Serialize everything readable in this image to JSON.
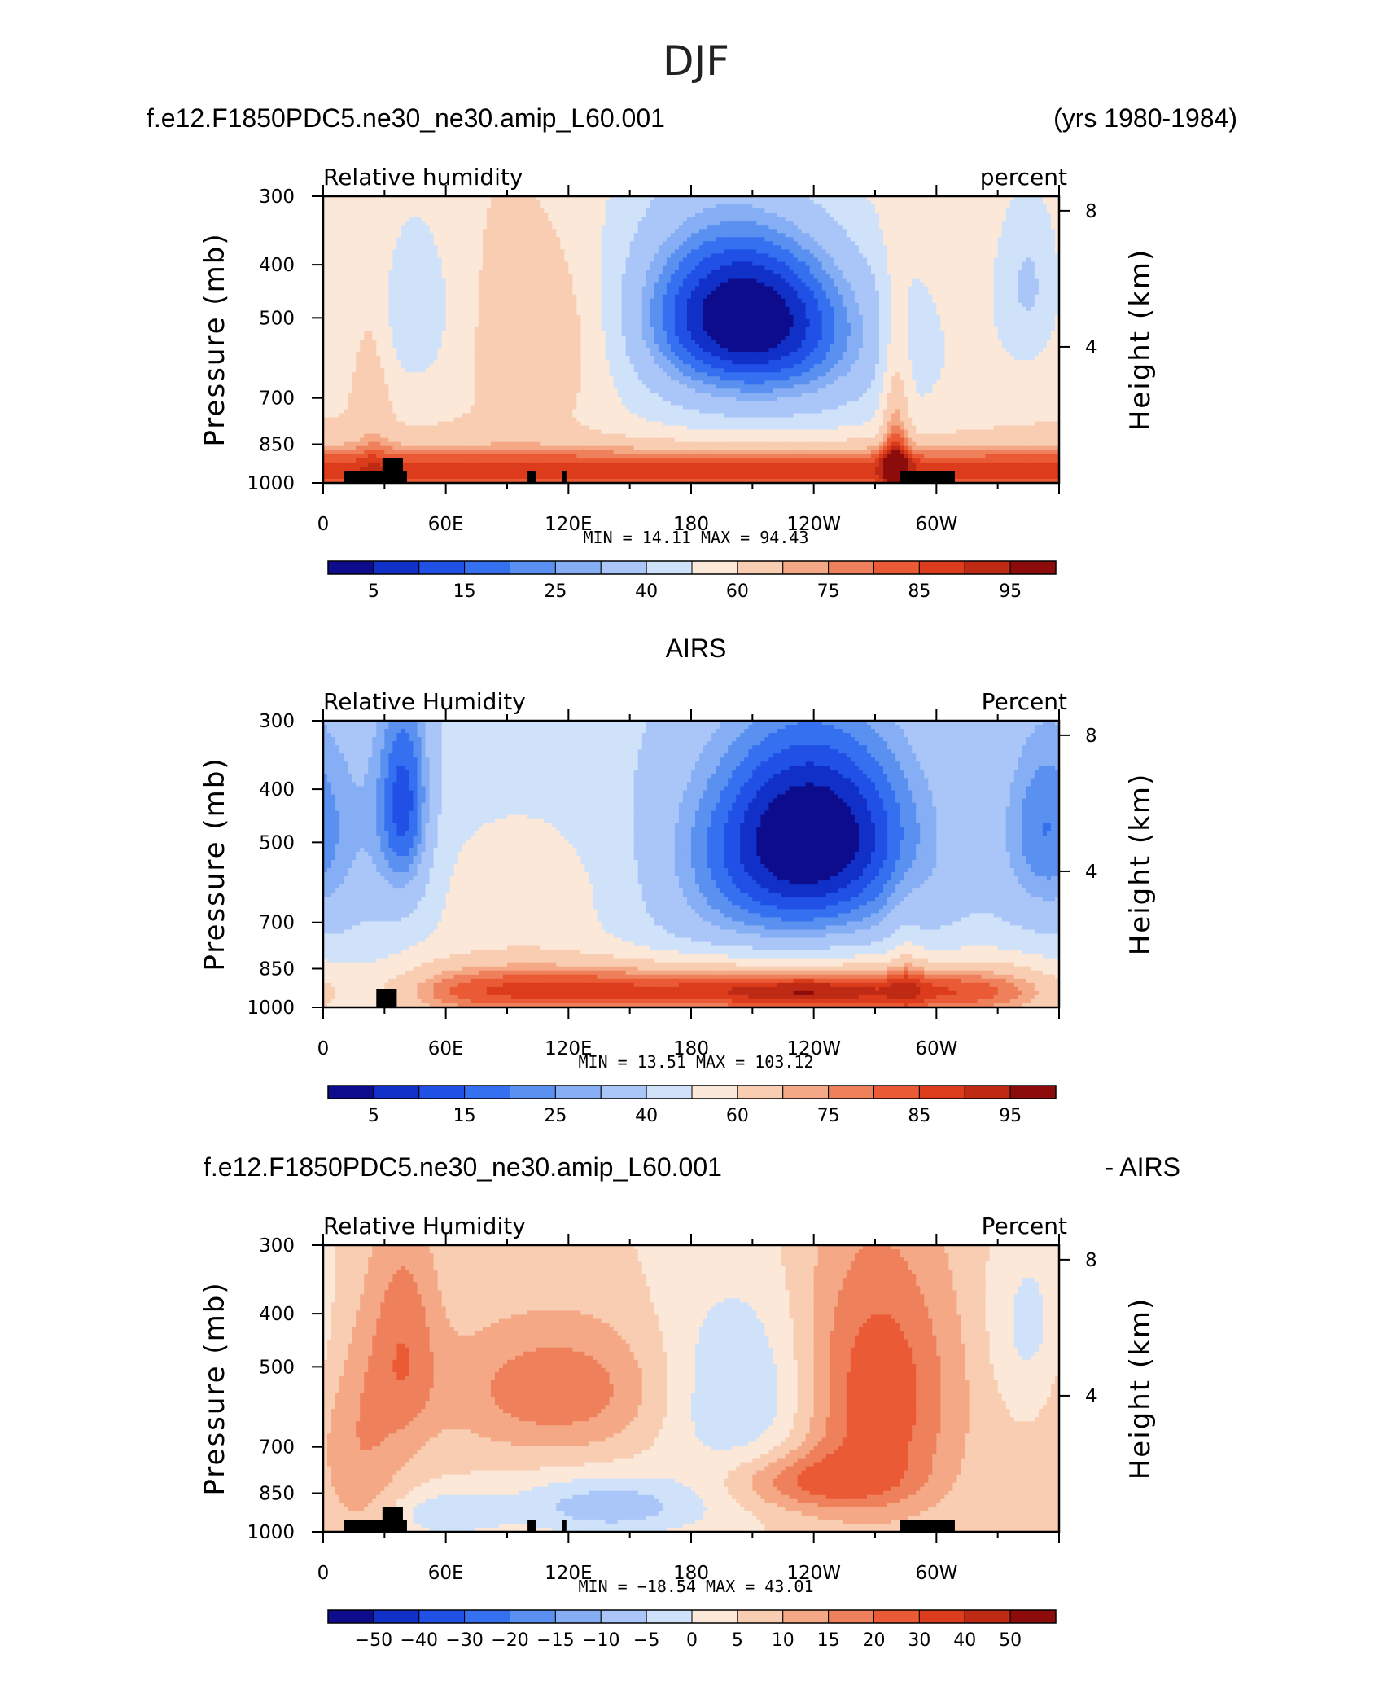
{
  "figure_title": "DJF",
  "chart_data": [
    {
      "type": "heatmap",
      "header_left": "f.e12.F1850PDC5.ne30_ne30.amip_L60.001",
      "header_right": "(yrs 1980-1984)",
      "var_label": "Relative humidity",
      "units_label": "percent",
      "ylabel": "Pressure (mb)",
      "ylabel_right": "Height (km)",
      "y_ticks": [
        "300",
        "400",
        "500",
        "700",
        "850",
        "1000"
      ],
      "y_tick_values": [
        300,
        400,
        500,
        700,
        850,
        1000
      ],
      "y_right_ticks": [
        "8",
        "4"
      ],
      "y_right_tick_values": [
        8,
        4
      ],
      "x_ticks": [
        "0",
        "60E",
        "120E",
        "180",
        "120W",
        "60W"
      ],
      "x_tick_values": [
        0,
        60,
        120,
        180,
        240,
        300
      ],
      "xlim": [
        0,
        360
      ],
      "ylim": [
        1000,
        300
      ],
      "stats": "MIN =    14.11   MAX =    94.43",
      "min": 14.11,
      "max": 94.43,
      "colorbar_labels": [
        "5",
        "15",
        "25",
        "40",
        "60",
        "75",
        "85",
        "95"
      ],
      "levels": [
        0,
        5,
        10,
        15,
        20,
        25,
        30,
        40,
        50,
        60,
        70,
        75,
        80,
        85,
        90,
        95,
        100
      ],
      "field": "model",
      "terrain": [
        [
          10,
          30,
          950
        ],
        [
          29,
          39,
          900
        ],
        [
          38,
          41,
          950
        ],
        [
          100,
          104,
          950
        ],
        [
          117,
          119,
          950
        ],
        [
          282,
          309,
          950
        ]
      ]
    },
    {
      "type": "heatmap",
      "header_center": "AIRS",
      "var_label": "Relative Humidity",
      "units_label": "Percent",
      "ylabel": "Pressure (mb)",
      "ylabel_right": "Height (km)",
      "y_ticks": [
        "300",
        "400",
        "500",
        "700",
        "850",
        "1000"
      ],
      "y_tick_values": [
        300,
        400,
        500,
        700,
        850,
        1000
      ],
      "y_right_ticks": [
        "8",
        "4"
      ],
      "y_right_tick_values": [
        8,
        4
      ],
      "x_ticks": [
        "0",
        "60E",
        "120E",
        "180",
        "120W",
        "60W"
      ],
      "x_tick_values": [
        0,
        60,
        120,
        180,
        240,
        300
      ],
      "xlim": [
        0,
        360
      ],
      "ylim": [
        1000,
        300
      ],
      "stats": "MIN =    13.51   MAX =  103.12",
      "min": 13.51,
      "max": 103.12,
      "colorbar_labels": [
        "5",
        "15",
        "25",
        "40",
        "60",
        "75",
        "85",
        "95"
      ],
      "levels": [
        0,
        5,
        10,
        15,
        20,
        25,
        30,
        40,
        50,
        60,
        70,
        75,
        80,
        85,
        90,
        95,
        100
      ],
      "field": "obs",
      "terrain": [
        [
          26,
          36,
          925
        ]
      ]
    },
    {
      "type": "heatmap",
      "header_left": "f.e12.F1850PDC5.ne30_ne30.amip_L60.001",
      "header_right": "- AIRS",
      "var_label": "Relative Humidity",
      "units_label": "Percent",
      "ylabel": "Pressure (mb)",
      "ylabel_right": "Height (km)",
      "y_ticks": [
        "300",
        "400",
        "500",
        "700",
        "850",
        "1000"
      ],
      "y_tick_values": [
        300,
        400,
        500,
        700,
        850,
        1000
      ],
      "y_right_ticks": [
        "8",
        "4"
      ],
      "y_right_tick_values": [
        8,
        4
      ],
      "x_ticks": [
        "0",
        "60E",
        "120E",
        "180",
        "120W",
        "60W"
      ],
      "x_tick_values": [
        0,
        60,
        120,
        180,
        240,
        300
      ],
      "xlim": [
        0,
        360
      ],
      "ylim": [
        1000,
        300
      ],
      "stats": "MIN =  −18.54   MAX =    43.01",
      "min": -18.54,
      "max": 43.01,
      "colorbar_labels": [
        "−50",
        "−40",
        "−30",
        "−20",
        "−15",
        "−10",
        "−5",
        "0",
        "5",
        "10",
        "15",
        "20",
        "30",
        "40",
        "50"
      ],
      "levels": [
        -60,
        -50,
        -40,
        -30,
        -20,
        -15,
        -10,
        -5,
        0,
        5,
        10,
        15,
        20,
        30,
        40,
        50,
        60
      ],
      "field": "diff",
      "terrain": [
        [
          10,
          30,
          950
        ],
        [
          29,
          39,
          900
        ],
        [
          38,
          41,
          950
        ],
        [
          100,
          104,
          950
        ],
        [
          117,
          119,
          950
        ],
        [
          282,
          309,
          950
        ]
      ]
    }
  ],
  "palette": [
    "#0c0c8c",
    "#1030c8",
    "#2050e6",
    "#3470f0",
    "#5a90f0",
    "#86aef4",
    "#aac6f8",
    "#d0e2fa",
    "#fbe8d8",
    "#f9cdb2",
    "#f4a886",
    "#ef805c",
    "#ea5a34",
    "#dc3c1c",
    "#bf2a14",
    "#8c0c0c"
  ]
}
